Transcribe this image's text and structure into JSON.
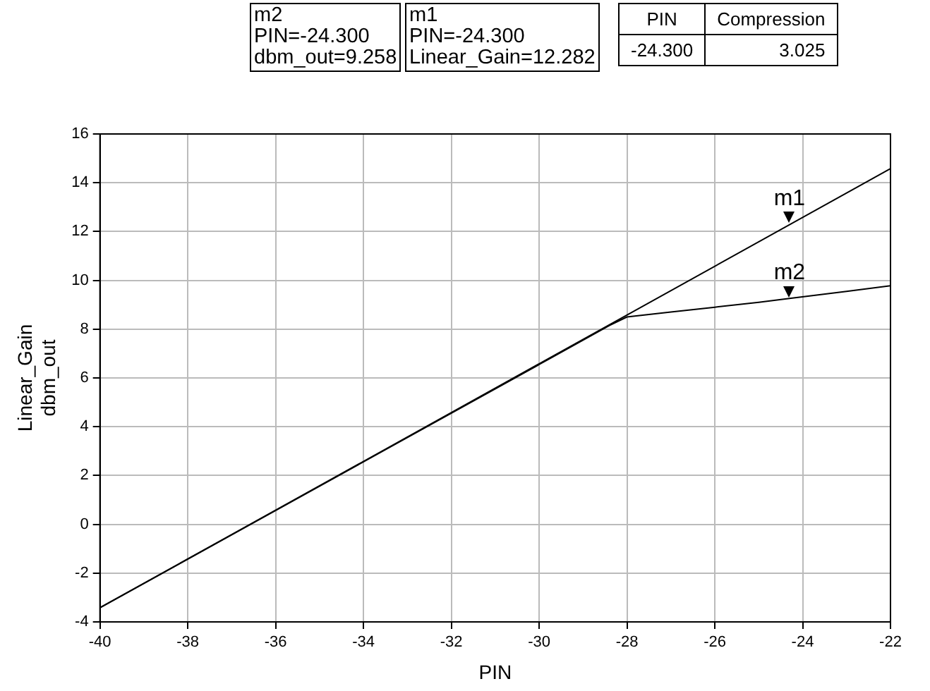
{
  "chart_data": {
    "type": "line",
    "xlabel": "PIN",
    "ylabel": "Linear_Gain\ndbm_out",
    "series": [
      {
        "color": "#000000",
        "x": [
          -40,
          -22
        ],
        "values": [
          -3.42,
          14.58
        ]
      },
      {
        "color": "#000000",
        "x": [
          -40,
          -30,
          -29,
          -28.4,
          -28,
          -27,
          -26,
          -25,
          -24.3,
          -23,
          -22
        ],
        "values": [
          -3.42,
          6.55,
          7.55,
          8.15,
          8.5,
          8.7,
          8.9,
          9.1,
          9.26,
          9.55,
          9.78
        ]
      }
    ],
    "xlim": [
      -40,
      -22
    ],
    "xticks": [
      -40,
      -38,
      -36,
      -34,
      -32,
      -30,
      -28,
      -26,
      -24,
      -22
    ],
    "ylim": [
      -4,
      16
    ],
    "yticks": [
      -4,
      -2,
      0,
      2,
      4,
      6,
      8,
      10,
      12,
      14,
      16
    ],
    "grid": true,
    "marker": "none",
    "line_style": "solid",
    "annotations": [
      {
        "text": "m1",
        "x": -24.3,
        "y": 12.282
      },
      {
        "text": "m2",
        "x": -24.3,
        "y": 9.258
      },
      "m2\nPIN=-24.300\ndbm_out=9.258",
      "m1\nPIN=-24.300\nLinear_Gain=12.282",
      "PIN\tCompression\n-24.300\t3.025"
    ]
  }
}
